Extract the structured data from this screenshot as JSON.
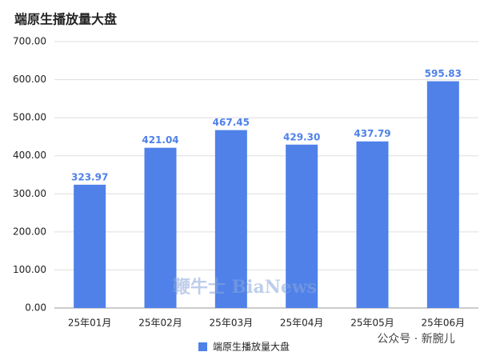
{
  "chart_data": {
    "type": "bar",
    "title": "端原生播放量大盘",
    "categories": [
      "25年01月",
      "25年02月",
      "25年03月",
      "25年04月",
      "25年05月",
      "25年06月"
    ],
    "series": [
      {
        "name": "端原生播放量大盘",
        "color": "#4f81e9",
        "values": [
          323.97,
          421.04,
          467.45,
          429.3,
          437.79,
          595.83
        ],
        "value_labels": [
          "323.97",
          "421.04",
          "467.45",
          "429.30",
          "437.79",
          "595.83"
        ]
      }
    ],
    "ylim": [
      0,
      700
    ],
    "yticks": [
      {
        "value": 0,
        "label": "0.00"
      },
      {
        "value": 100,
        "label": "100.00"
      },
      {
        "value": 200,
        "label": "200.00"
      },
      {
        "value": 300,
        "label": "300.00"
      },
      {
        "value": 400,
        "label": "400.00"
      },
      {
        "value": 500,
        "label": "500.00"
      },
      {
        "value": 600,
        "label": "600.00"
      },
      {
        "value": 700,
        "label": "700.00"
      }
    ],
    "grid": true,
    "legend": "bottom",
    "annotations": [
      "鞭牛士 BiaNews",
      "公众号 · 新腕儿"
    ]
  }
}
